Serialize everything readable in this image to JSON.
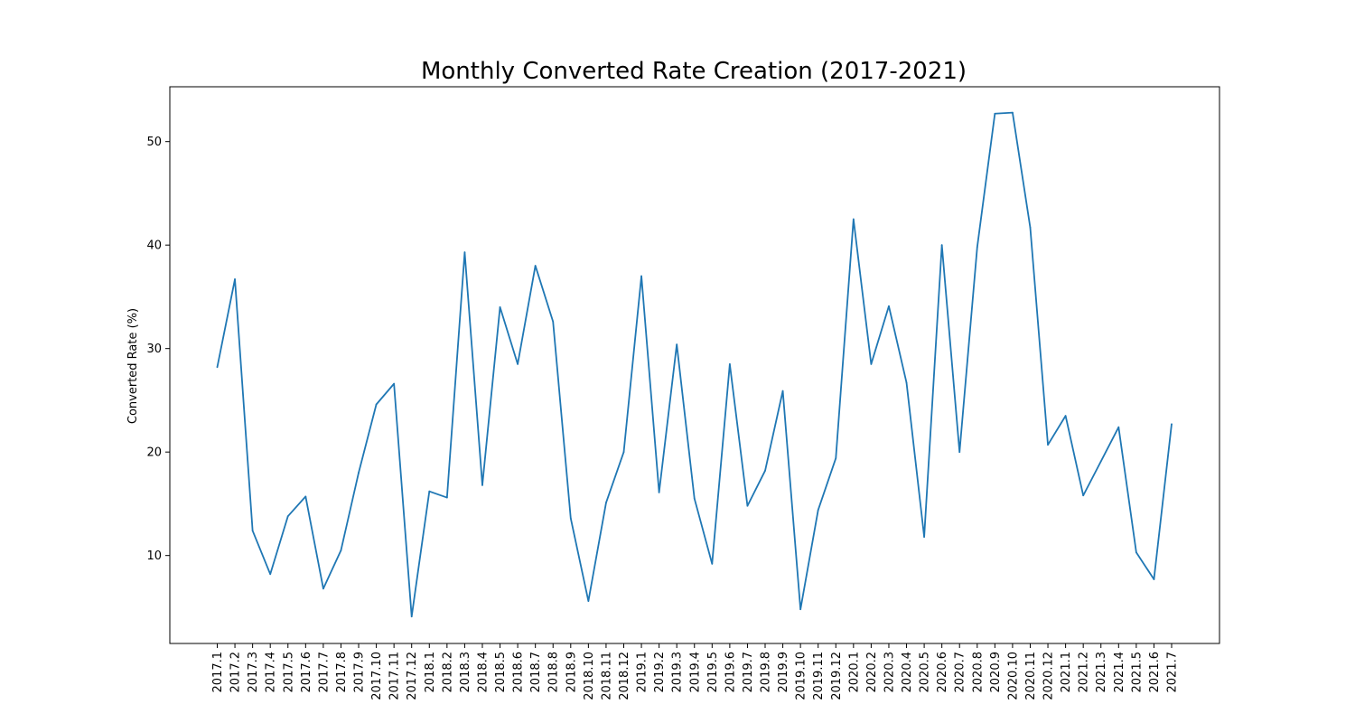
{
  "chart_data": {
    "type": "line",
    "title": "Monthly Converted Rate Creation (2017-2021)",
    "xlabel": "",
    "ylabel": "Converted Rate (%)",
    "ylim": [
      1.5,
      55.3
    ],
    "yticks": [
      10,
      20,
      30,
      40,
      50
    ],
    "grid": false,
    "line_color": "#1f77b4",
    "categories": [
      "2017.1",
      "2017.2",
      "2017.3",
      "2017.4",
      "2017.5",
      "2017.6",
      "2017.7",
      "2017.8",
      "2017.9",
      "2017.10",
      "2017.11",
      "2017.12",
      "2018.1",
      "2018.2",
      "2018.3",
      "2018.4",
      "2018.5",
      "2018.6",
      "2018.7",
      "2018.8",
      "2018.9",
      "2018.10",
      "2018.11",
      "2018.12",
      "2019.1",
      "2019.2",
      "2019.3",
      "2019.4",
      "2019.5",
      "2019.6",
      "2019.7",
      "2019.8",
      "2019.9",
      "2019.10",
      "2019.11",
      "2019.12",
      "2020.1",
      "2020.2",
      "2020.3",
      "2020.4",
      "2020.5",
      "2020.6",
      "2020.7",
      "2020.8",
      "2020.9",
      "2020.10",
      "2020.11",
      "2020.12",
      "2021.1",
      "2021.2",
      "2021.3",
      "2021.4",
      "2021.5",
      "2021.6",
      "2021.7"
    ],
    "values": [
      28.2,
      36.7,
      12.4,
      8.2,
      13.8,
      15.7,
      6.8,
      10.5,
      18.0,
      24.6,
      26.6,
      4.1,
      16.2,
      15.6,
      39.3,
      16.8,
      34.0,
      28.5,
      38.0,
      32.6,
      13.6,
      5.6,
      15.1,
      20.0,
      37.0,
      16.1,
      30.4,
      15.5,
      9.2,
      28.5,
      14.8,
      18.2,
      25.9,
      4.8,
      14.4,
      19.4,
      42.5,
      28.5,
      34.1,
      26.7,
      11.8,
      40.0,
      20.0,
      39.8,
      52.7,
      52.8,
      41.7,
      20.7,
      23.5,
      15.8,
      19.1,
      22.4,
      10.3,
      7.7,
      22.7
    ]
  }
}
